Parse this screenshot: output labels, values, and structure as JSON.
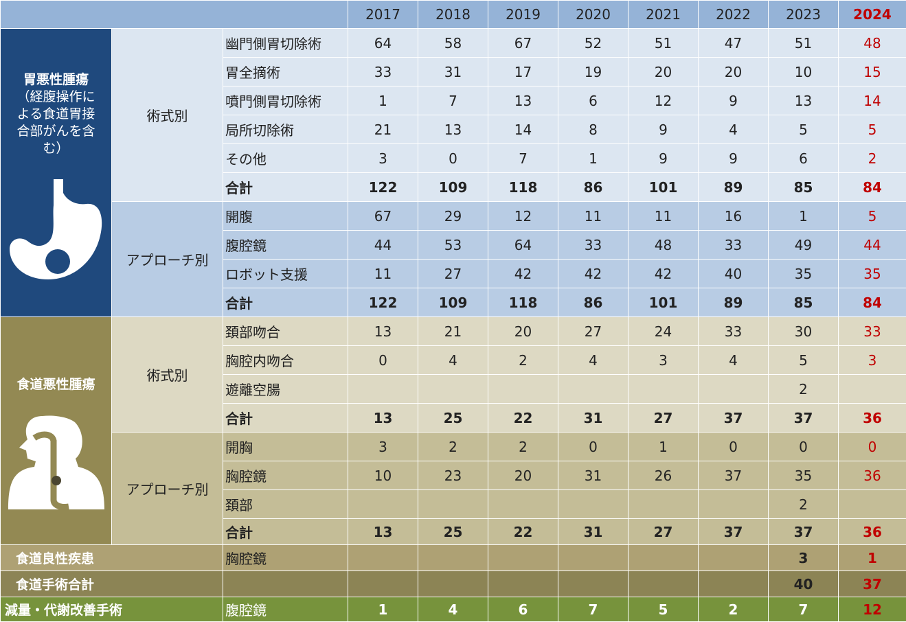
{
  "years": [
    "2017",
    "2018",
    "2019",
    "2020",
    "2021",
    "2022",
    "2023",
    "2024"
  ],
  "stomach": {
    "group_title": "胃悪性腫瘍",
    "group_note": "（経腹操作による食道胃接合部がんを含む）",
    "group_note_lines": [
      "（経腹操作に",
      "よる食道胃接",
      "合部がんを含",
      "む）"
    ],
    "icon": "stomach-icon",
    "by_procedure_label": "術式別",
    "by_procedure": [
      {
        "name": "幽門側胃切除術",
        "values": [
          "64",
          "58",
          "67",
          "52",
          "51",
          "47",
          "51",
          "48"
        ]
      },
      {
        "name": "胃全摘術",
        "values": [
          "33",
          "31",
          "17",
          "19",
          "20",
          "20",
          "10",
          "15"
        ]
      },
      {
        "name": "噴門側胃切除術",
        "values": [
          "1",
          "7",
          "13",
          "6",
          "12",
          "9",
          "13",
          "14"
        ]
      },
      {
        "name": "局所切除術",
        "values": [
          "21",
          "13",
          "14",
          "8",
          "9",
          "4",
          "5",
          "5"
        ]
      },
      {
        "name": "その他",
        "values": [
          "3",
          "0",
          "7",
          "1",
          "9",
          "9",
          "6",
          "2"
        ]
      },
      {
        "name": "合計",
        "values": [
          "122",
          "109",
          "118",
          "86",
          "101",
          "89",
          "85",
          "84"
        ]
      }
    ],
    "by_approach_label": "アプローチ別",
    "by_approach": [
      {
        "name": "開腹",
        "values": [
          "67",
          "29",
          "12",
          "11",
          "11",
          "16",
          "1",
          "5"
        ]
      },
      {
        "name": "腹腔鏡",
        "values": [
          "44",
          "53",
          "64",
          "33",
          "48",
          "33",
          "49",
          "44"
        ]
      },
      {
        "name": "ロボット支援",
        "values": [
          "11",
          "27",
          "42",
          "42",
          "42",
          "40",
          "35",
          "35"
        ]
      },
      {
        "name": "合計",
        "values": [
          "122",
          "109",
          "118",
          "86",
          "101",
          "89",
          "85",
          "84"
        ]
      }
    ]
  },
  "esophagus": {
    "group_title": "食道悪性腫瘍",
    "icon": "esophagus-icon",
    "by_procedure_label": "術式別",
    "by_procedure": [
      {
        "name": "頚部吻合",
        "values": [
          "13",
          "21",
          "20",
          "27",
          "24",
          "33",
          "30",
          "33"
        ]
      },
      {
        "name": "胸腔内吻合",
        "values": [
          "0",
          "4",
          "2",
          "4",
          "3",
          "4",
          "5",
          "3"
        ]
      },
      {
        "name": "遊離空腸",
        "values": [
          "",
          "",
          "",
          "",
          "",
          "",
          "2",
          ""
        ]
      },
      {
        "name": "合計",
        "values": [
          "13",
          "25",
          "22",
          "31",
          "27",
          "37",
          "37",
          "36"
        ]
      }
    ],
    "by_approach_label": "アプローチ別",
    "by_approach": [
      {
        "name": "開胸",
        "values": [
          "3",
          "2",
          "2",
          "0",
          "1",
          "0",
          "0",
          "0"
        ]
      },
      {
        "name": "胸腔鏡",
        "values": [
          "10",
          "23",
          "20",
          "31",
          "26",
          "37",
          "35",
          "36"
        ]
      },
      {
        "name": "頚部",
        "values": [
          "",
          "",
          "",
          "",
          "",
          "",
          "2",
          ""
        ]
      },
      {
        "name": "合計",
        "values": [
          "13",
          "25",
          "22",
          "31",
          "27",
          "37",
          "37",
          "36"
        ]
      }
    ]
  },
  "benign": {
    "title": "食道良性疾患",
    "procedure": "胸腔鏡",
    "values": [
      "",
      "",
      "",
      "",
      "",
      "",
      "3",
      "1"
    ]
  },
  "eso_total": {
    "title": "食道手術合計",
    "procedure": "",
    "values": [
      "",
      "",
      "",
      "",
      "",
      "",
      "40",
      "37"
    ]
  },
  "bariatric": {
    "title": "減量・代謝改善手術",
    "procedure": "腹腔鏡",
    "values": [
      "1",
      "4",
      "6",
      "7",
      "5",
      "2",
      "7",
      "12"
    ]
  },
  "colors": {
    "stomach": "#1f497d",
    "esophagus": "#938953",
    "bariatric": "#77933c",
    "header": "#95b3d7",
    "highlight_2024": "#c00000"
  }
}
